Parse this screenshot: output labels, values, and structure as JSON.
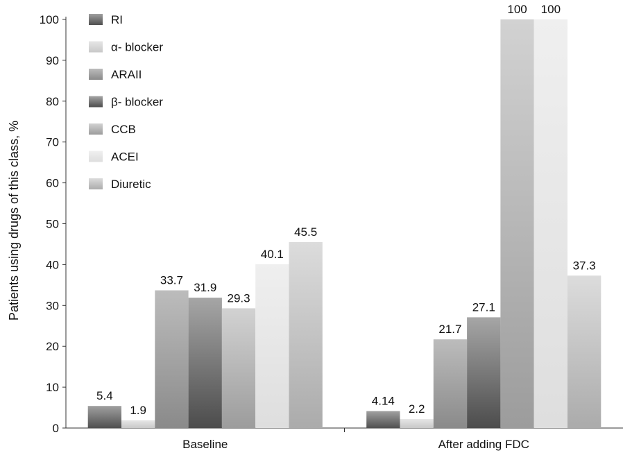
{
  "chart_data": {
    "type": "bar",
    "categories": [
      "Baseline",
      "After adding FDC"
    ],
    "ylabel": "Patients using drugs of this class, %",
    "xlabel": "",
    "ylim": [
      0,
      100
    ],
    "yticks": [
      0,
      10,
      20,
      30,
      40,
      50,
      60,
      70,
      80,
      90,
      100
    ],
    "grid": false,
    "legend_position": "top-left",
    "series": [
      {
        "name": "RI",
        "values": [
          5.4,
          4.14
        ],
        "labels": [
          "5.4",
          "4.14"
        ],
        "color_light": "#a0a0a0",
        "color_dark": "#505050"
      },
      {
        "name": "α- blocker",
        "values": [
          1.9,
          2.2
        ],
        "labels": [
          "1.9",
          "2.2"
        ],
        "color_light": "#e6e6e6",
        "color_dark": "#c8c8c8"
      },
      {
        "name": "ARAII",
        "values": [
          33.7,
          21.7
        ],
        "labels": [
          "33.7",
          "21.7"
        ],
        "color_light": "#bcbcbc",
        "color_dark": "#8a8a8a"
      },
      {
        "name": "β- blocker",
        "values": [
          31.9,
          27.1
        ],
        "labels": [
          "31.9",
          "27.1"
        ],
        "color_light": "#a6a6a6",
        "color_dark": "#4c4c4c"
      },
      {
        "name": "CCB",
        "values": [
          29.3,
          100
        ],
        "labels": [
          "29.3",
          "100"
        ],
        "color_light": "#d2d2d2",
        "color_dark": "#9c9c9c"
      },
      {
        "name": "ACEI",
        "values": [
          40.1,
          100
        ],
        "labels": [
          "40.1",
          "100"
        ],
        "color_light": "#efefef",
        "color_dark": "#dedede"
      },
      {
        "name": "Diuretic",
        "values": [
          45.5,
          37.3
        ],
        "labels": [
          "45.5",
          "37.3"
        ],
        "color_light": "#dcdcdc",
        "color_dark": "#ababab"
      }
    ]
  }
}
